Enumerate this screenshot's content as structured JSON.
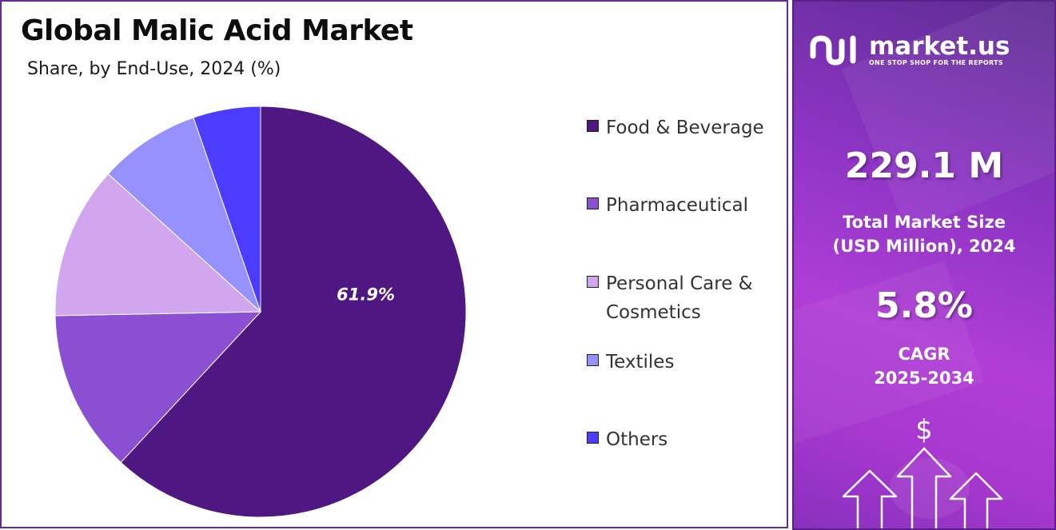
{
  "title": "Global Malic Acid Market",
  "subtitle": "Share, by End-Use, 2024 (%)",
  "chart_data": {
    "type": "pie",
    "title": "Global Malic Acid Market",
    "subtitle": "Share, by End-Use, 2024 (%)",
    "categories": [
      "Food & Beverage",
      "Pharmaceutical",
      "Personal Care & Cosmetics",
      "Textiles",
      "Others"
    ],
    "values": [
      61.9,
      12.8,
      12.0,
      8.0,
      5.3
    ],
    "data_labels": [
      "61.9%",
      "",
      "",
      "",
      ""
    ],
    "colors": [
      "#4e1782",
      "#8a4fd3",
      "#d1a6ee",
      "#9592ff",
      "#4b3cff"
    ],
    "legend_position": "right",
    "start_angle": "top, clockwise"
  },
  "side_panel": {
    "brand_name": "market.us",
    "brand_tagline": "ONE STOP SHOP FOR THE REPORTS",
    "market_size_value": "229.1 M",
    "market_size_label_line1": "Total Market Size",
    "market_size_label_line2": "(USD Million), 2024",
    "cagr_value": "5.8%",
    "cagr_label_line1": "CAGR",
    "cagr_label_line2": "2025-2034",
    "dollar_symbol": "$",
    "background_colors": [
      "#5d2c92",
      "#b03ed6"
    ],
    "icons": [
      "market-us-logo-icon",
      "dollar-icon",
      "growth-arrows-icon"
    ]
  }
}
